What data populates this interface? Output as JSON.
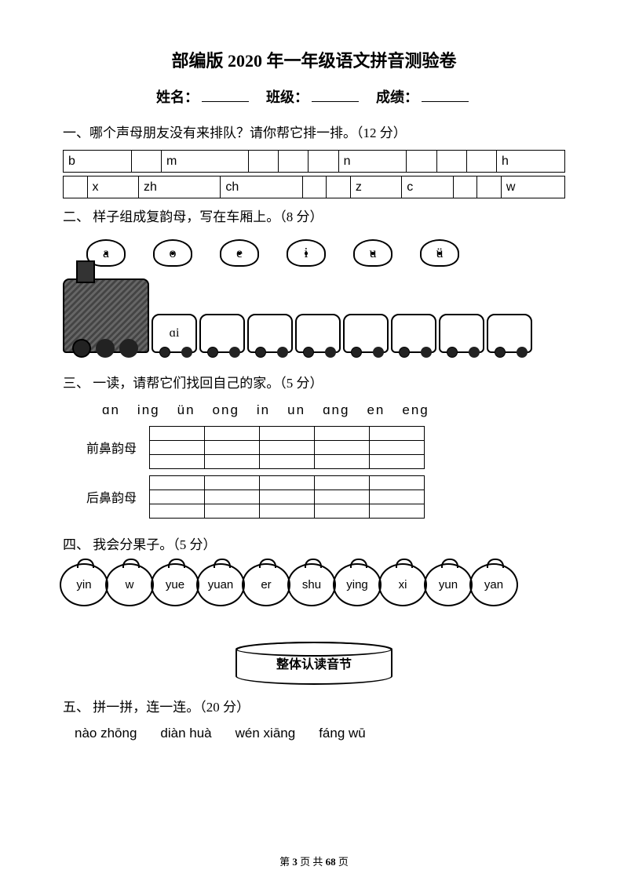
{
  "title": "部编版 2020 年一年级语文拼音测验卷",
  "info": {
    "name_label": "姓名：",
    "class_label": "班级：",
    "score_label": "成绩："
  },
  "q1": {
    "text": "一、哪个声母朋友没有来排队？请你帮它排一排。（12 分）",
    "row1": [
      "b",
      "",
      "m",
      "",
      "",
      "",
      "n",
      "",
      "",
      "",
      "h"
    ],
    "row2": [
      "",
      "x",
      "zh",
      "ch",
      "",
      "",
      "z",
      "c",
      "",
      "",
      "w"
    ]
  },
  "q2": {
    "text": "二、 样子组成复韵母，写在车厢上。（8 分）",
    "clouds": [
      "a",
      "o",
      "e",
      "i",
      "u",
      "ü"
    ],
    "first_car": "ɑi",
    "car_count": 8
  },
  "q3": {
    "text": "三、 一读，请帮它们找回自己的家。（5 分）",
    "items": [
      "ɑn",
      "ing",
      "ün",
      "ong",
      "in",
      "un",
      "ɑng",
      "en",
      "eng"
    ],
    "front_label": "前鼻韵母",
    "back_label": "后鼻韵母",
    "cols": 5
  },
  "q4": {
    "text": "四、 我会分果子。（5 分）",
    "fruits": [
      "yin",
      "w",
      "yue",
      "yuan",
      "er",
      "shu",
      "ying",
      "xi",
      "yun",
      "yan"
    ],
    "basket_label": "整体认读音节"
  },
  "q5": {
    "text": "五、 拼一拼，连一连。（20 分）",
    "words": [
      "nào  zhōng",
      "diàn  huà",
      "wén  xiāng",
      "fáng  wū"
    ]
  },
  "footer": {
    "prefix": "第 ",
    "page": "3",
    "mid": " 页 共 ",
    "total": "68",
    "suffix": " 页"
  },
  "colors": {
    "text": "#000000",
    "bg": "#ffffff",
    "border": "#000000"
  }
}
